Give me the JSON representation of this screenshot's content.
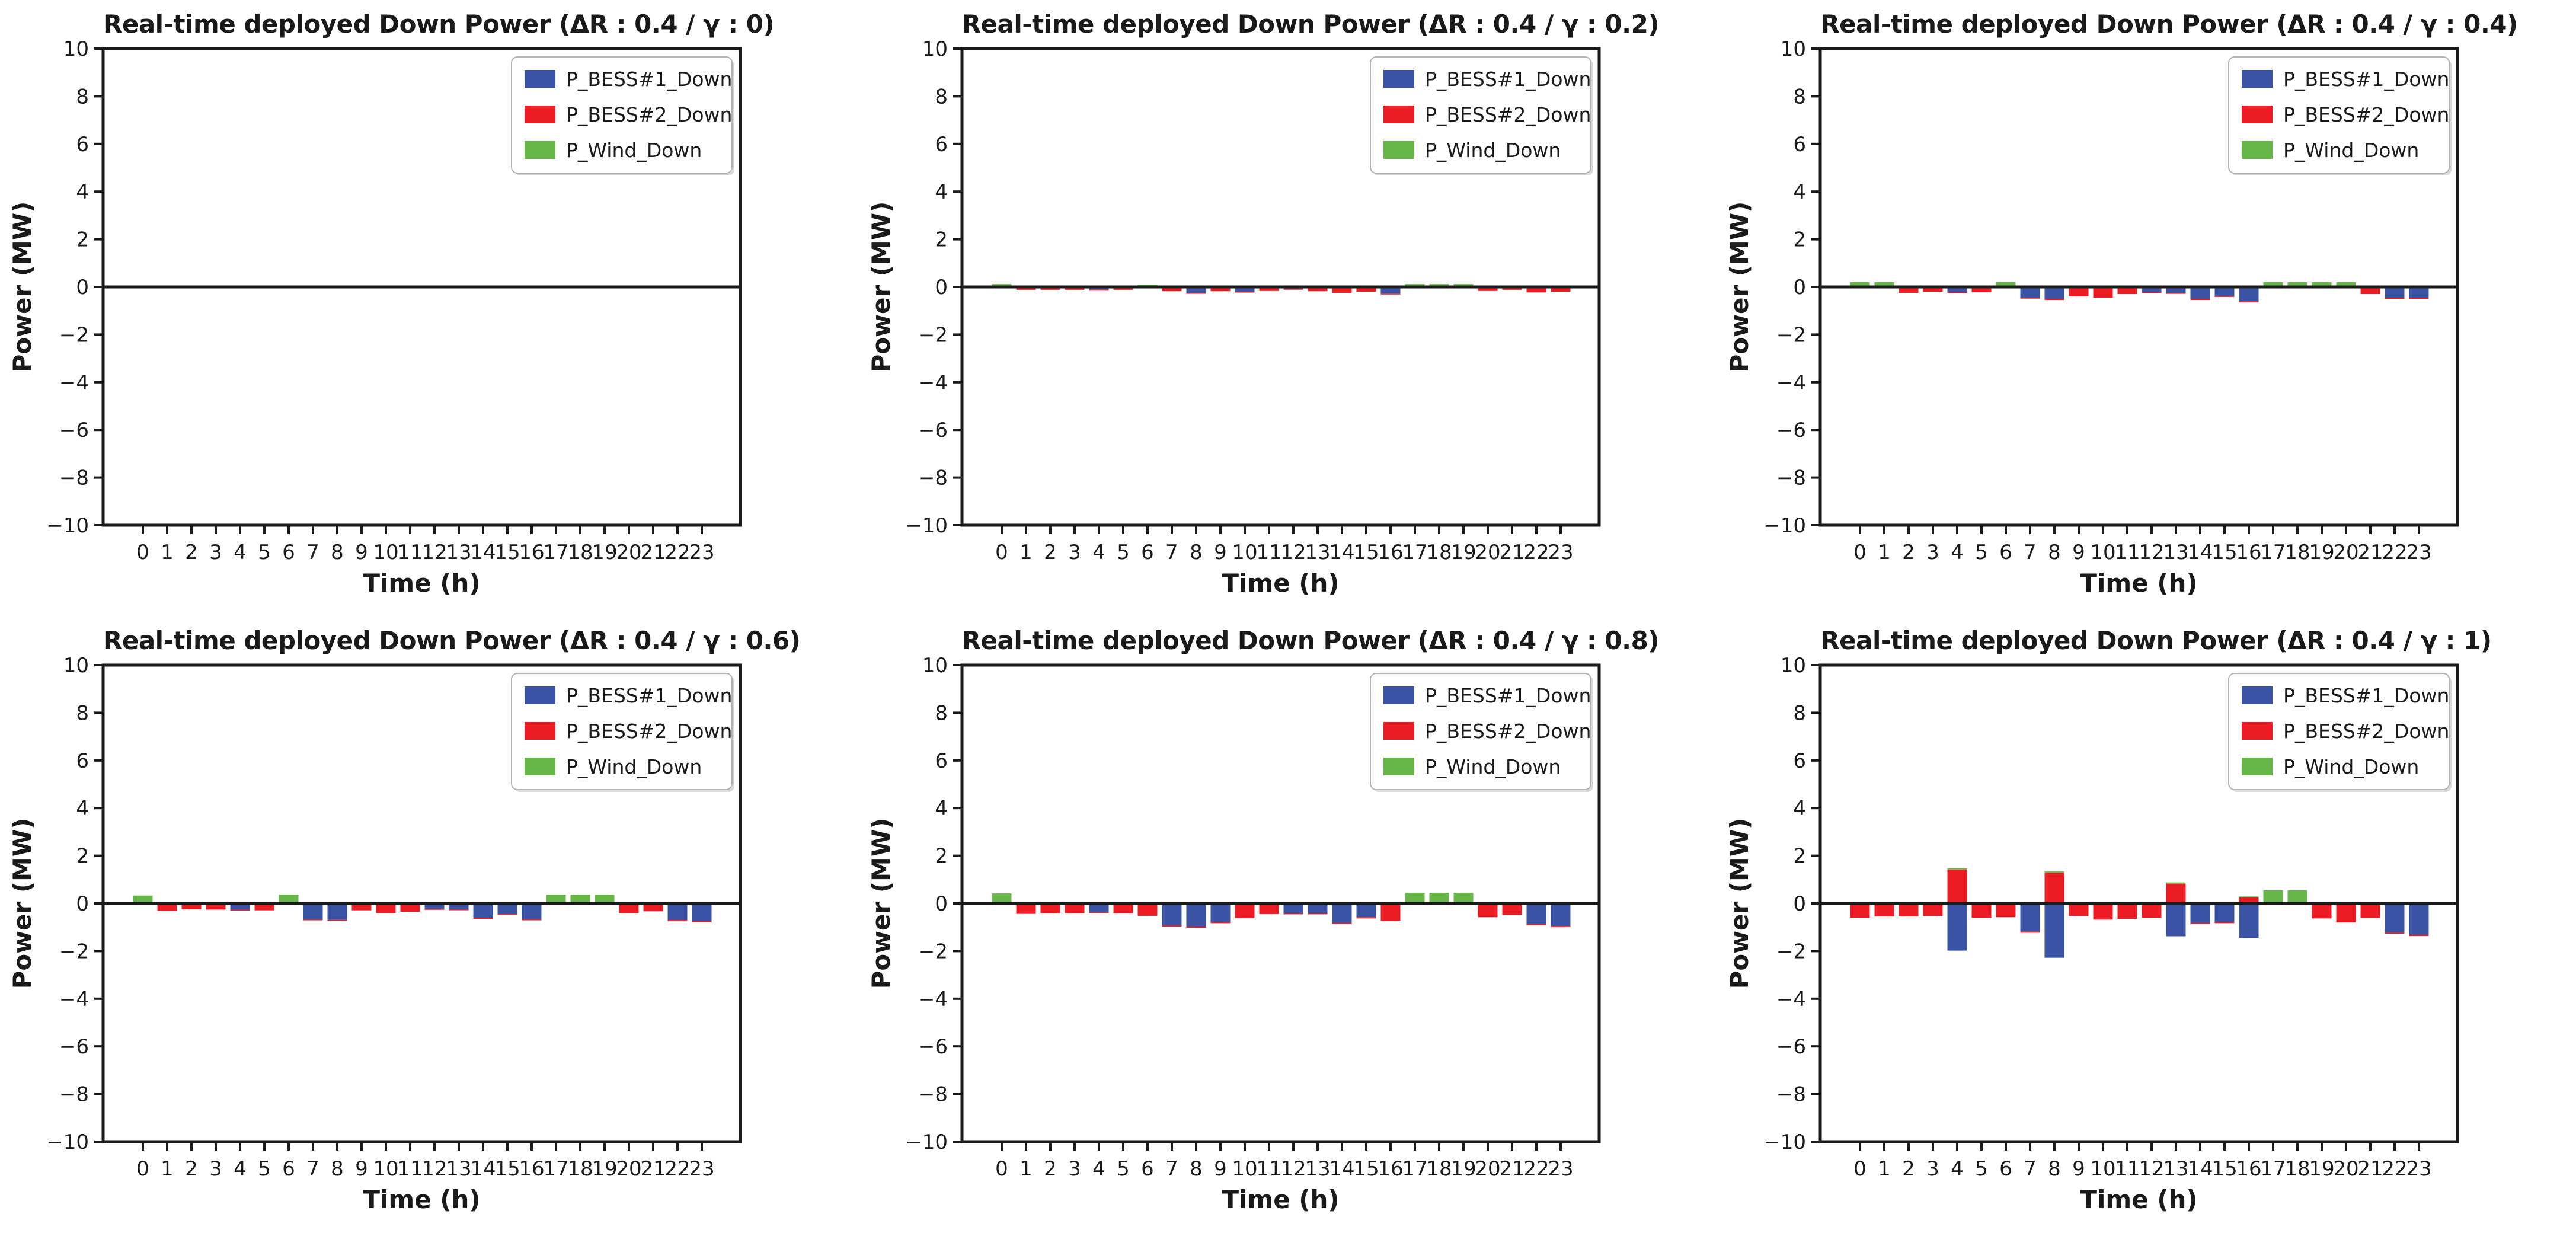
{
  "page": {
    "background": "#ffffff"
  },
  "colors": {
    "bess1": "#3A53A4",
    "bess2": "#EC1C24",
    "wind": "#67B648",
    "axis": "#1a1a1a",
    "legend_border": "#b3b3b3",
    "legend_shadow": "#d9d9d9"
  },
  "legend": {
    "entries": [
      {
        "label": "P_BESS#1_Down",
        "series": "bess1"
      },
      {
        "label": "P_BESS#2_Down",
        "series": "bess2"
      },
      {
        "label": "P_Wind_Down",
        "series": "wind"
      }
    ]
  },
  "axes": {
    "xlabel": "Time (h)",
    "ylabel": "Power (MW)",
    "ylim": [
      -10,
      10
    ],
    "ytick_values": [
      10,
      8,
      6,
      4,
      2,
      0,
      -2,
      -4,
      -6,
      -8,
      -10
    ],
    "ytick_labels": [
      "10",
      "8",
      "6",
      "4",
      "2",
      "0",
      "−2",
      "−4",
      "−6",
      "−8",
      "−10"
    ],
    "xtick_labels": [
      "0",
      "1",
      "2",
      "3",
      "4",
      "5",
      "6",
      "7",
      "8",
      "9",
      "10",
      "11",
      "12",
      "13",
      "14",
      "15",
      "16",
      "17",
      "18",
      "19",
      "20",
      "21",
      "22",
      "23"
    ],
    "grid": false,
    "legend_position": "upper right"
  },
  "chart_data": [
    {
      "type": "bar",
      "stacked": true,
      "title": "Real-time deployed Down Power (ΔR : 0.4 / γ : 0)",
      "delta_R": 0.4,
      "gamma": 0,
      "xlabel": "Time (h)",
      "ylabel": "Power (MW)",
      "ylim": [
        -10,
        10
      ],
      "categories": [
        0,
        1,
        2,
        3,
        4,
        5,
        6,
        7,
        8,
        9,
        10,
        11,
        12,
        13,
        14,
        15,
        16,
        17,
        18,
        19,
        20,
        21,
        22,
        23
      ],
      "series": [
        {
          "name": "P_BESS#1_Down",
          "color_key": "bess1",
          "values": [
            0,
            0,
            0,
            0,
            0,
            0,
            0,
            0,
            0,
            0,
            0,
            0,
            0,
            0,
            0,
            0,
            0,
            0,
            0,
            0,
            0,
            0,
            0,
            0
          ]
        },
        {
          "name": "P_BESS#2_Down",
          "color_key": "bess2",
          "values": [
            0,
            0,
            0,
            0,
            0,
            0,
            0,
            0,
            0,
            0,
            0,
            0,
            0,
            0,
            0,
            0,
            0,
            0,
            0,
            0,
            0,
            0,
            0,
            0
          ]
        },
        {
          "name": "P_Wind_Down",
          "color_key": "wind",
          "values": [
            0,
            0,
            0,
            0,
            0,
            0,
            0,
            0,
            0,
            0,
            0,
            0,
            0,
            0,
            0,
            0,
            0,
            0,
            0,
            0,
            0,
            0,
            0,
            0
          ]
        }
      ]
    },
    {
      "type": "bar",
      "stacked": true,
      "title": "Real-time deployed Down Power (ΔR : 0.4 / γ : 0.2)",
      "delta_R": 0.4,
      "gamma": 0.2,
      "xlabel": "Time (h)",
      "ylabel": "Power (MW)",
      "ylim": [
        -10,
        10
      ],
      "categories": [
        0,
        1,
        2,
        3,
        4,
        5,
        6,
        7,
        8,
        9,
        10,
        11,
        12,
        13,
        14,
        15,
        16,
        17,
        18,
        19,
        20,
        21,
        22,
        23
      ],
      "series": [
        {
          "name": "P_BESS#1_Down",
          "color_key": "bess1",
          "values": [
            0,
            0,
            0,
            0,
            -0.12,
            0,
            0,
            0,
            -0.25,
            0,
            -0.2,
            0,
            -0.08,
            0,
            0,
            0,
            -0.28,
            0,
            0,
            0,
            0,
            0,
            0,
            0
          ]
        },
        {
          "name": "P_BESS#2_Down",
          "color_key": "bess2",
          "values": [
            0,
            -0.12,
            -0.12,
            -0.12,
            -0.03,
            -0.12,
            0,
            -0.18,
            -0.03,
            -0.18,
            -0.03,
            -0.17,
            -0.03,
            -0.18,
            -0.25,
            -0.2,
            -0.03,
            0,
            0,
            0,
            -0.17,
            -0.12,
            -0.23,
            -0.2
          ]
        },
        {
          "name": "P_Wind_Down",
          "color_key": "wind",
          "values": [
            0.12,
            0,
            0,
            0,
            0,
            0,
            0.1,
            0,
            0,
            0,
            0,
            0,
            0,
            0,
            0,
            0,
            0,
            0.12,
            0.12,
            0.12,
            0,
            0,
            0,
            0
          ]
        }
      ]
    },
    {
      "type": "bar",
      "stacked": true,
      "title": "Real-time deployed Down Power (ΔR : 0.4 / γ : 0.4)",
      "delta_R": 0.4,
      "gamma": 0.4,
      "xlabel": "Time (h)",
      "ylabel": "Power (MW)",
      "ylim": [
        -10,
        10
      ],
      "categories": [
        0,
        1,
        2,
        3,
        4,
        5,
        6,
        7,
        8,
        9,
        10,
        11,
        12,
        13,
        14,
        15,
        16,
        17,
        18,
        19,
        20,
        21,
        22,
        23
      ],
      "series": [
        {
          "name": "P_BESS#1_Down",
          "color_key": "bess1",
          "values": [
            0,
            0,
            0,
            0,
            -0.22,
            0,
            0,
            -0.45,
            -0.5,
            0,
            0,
            0,
            -0.22,
            -0.25,
            -0.5,
            -0.38,
            -0.6,
            0,
            0,
            0,
            0,
            0,
            -0.45,
            -0.45
          ]
        },
        {
          "name": "P_BESS#2_Down",
          "color_key": "bess2",
          "values": [
            0,
            0,
            -0.25,
            -0.2,
            -0.04,
            -0.22,
            0,
            -0.04,
            -0.05,
            -0.4,
            -0.45,
            -0.3,
            -0.04,
            -0.04,
            -0.05,
            -0.04,
            -0.05,
            0,
            0,
            0,
            0,
            -0.3,
            -0.05,
            -0.05
          ]
        },
        {
          "name": "P_Wind_Down",
          "color_key": "wind",
          "values": [
            0.2,
            0.2,
            0,
            0,
            0,
            0,
            0.2,
            0,
            0,
            0,
            0,
            0,
            0,
            0,
            0,
            0,
            0,
            0.2,
            0.2,
            0.2,
            0.2,
            0,
            0,
            0
          ]
        }
      ]
    },
    {
      "type": "bar",
      "stacked": true,
      "title": "Real-time deployed Down Power (ΔR : 0.4 / γ : 0.6)",
      "delta_R": 0.4,
      "gamma": 0.6,
      "xlabel": "Time (h)",
      "ylabel": "Power (MW)",
      "ylim": [
        -10,
        10
      ],
      "categories": [
        0,
        1,
        2,
        3,
        4,
        5,
        6,
        7,
        8,
        9,
        10,
        11,
        12,
        13,
        14,
        15,
        16,
        17,
        18,
        19,
        20,
        21,
        22,
        23
      ],
      "series": [
        {
          "name": "P_BESS#1_Down",
          "color_key": "bess1",
          "values": [
            0,
            0,
            0,
            0,
            -0.26,
            0,
            0,
            -0.67,
            -0.69,
            0,
            0,
            0,
            -0.23,
            -0.25,
            -0.6,
            -0.45,
            -0.66,
            0,
            0,
            0,
            0,
            0,
            -0.7,
            -0.74
          ]
        },
        {
          "name": "P_BESS#2_Down",
          "color_key": "bess2",
          "values": [
            0,
            -0.31,
            -0.25,
            -0.26,
            -0.03,
            -0.29,
            0,
            -0.04,
            -0.04,
            -0.29,
            -0.41,
            -0.35,
            -0.03,
            -0.03,
            -0.05,
            -0.04,
            -0.05,
            0,
            0,
            0,
            -0.41,
            -0.33,
            -0.05,
            -0.05
          ]
        },
        {
          "name": "P_Wind_Down",
          "color_key": "wind",
          "values": [
            0.33,
            0,
            0,
            0,
            0,
            0,
            0.37,
            0,
            0,
            0,
            0,
            0,
            0,
            0,
            0,
            0,
            0,
            0.37,
            0.37,
            0.37,
            0,
            0,
            0,
            0
          ]
        }
      ]
    },
    {
      "type": "bar",
      "stacked": true,
      "title": "Real-time deployed Down Power (ΔR : 0.4 / γ : 0.8)",
      "delta_R": 0.4,
      "gamma": 0.8,
      "xlabel": "Time (h)",
      "ylabel": "Power (MW)",
      "ylim": [
        -10,
        10
      ],
      "categories": [
        0,
        1,
        2,
        3,
        4,
        5,
        6,
        7,
        8,
        9,
        10,
        11,
        12,
        13,
        14,
        15,
        16,
        17,
        18,
        19,
        20,
        21,
        22,
        23
      ],
      "series": [
        {
          "name": "P_BESS#1_Down",
          "color_key": "bess1",
          "values": [
            0,
            0,
            0,
            0,
            -0.37,
            0,
            0,
            -0.92,
            -0.97,
            -0.78,
            0,
            0,
            -0.42,
            -0.42,
            -0.82,
            -0.58,
            0,
            0,
            0,
            0,
            0,
            0,
            -0.86,
            -0.95
          ]
        },
        {
          "name": "P_BESS#2_Down",
          "color_key": "bess2",
          "values": [
            0,
            -0.44,
            -0.42,
            -0.42,
            -0.04,
            -0.42,
            -0.52,
            -0.05,
            -0.05,
            -0.05,
            -0.62,
            -0.45,
            -0.04,
            -0.04,
            -0.05,
            -0.05,
            -0.74,
            0,
            0,
            0,
            -0.58,
            -0.49,
            -0.05,
            -0.05
          ]
        },
        {
          "name": "P_Wind_Down",
          "color_key": "wind",
          "values": [
            0.42,
            0,
            0,
            0,
            0,
            0,
            0,
            0,
            0,
            0,
            0,
            0,
            0,
            0,
            0,
            0,
            0,
            0.45,
            0.45,
            0.45,
            0,
            0,
            0,
            0
          ]
        }
      ]
    },
    {
      "type": "bar",
      "stacked": true,
      "title": "Real-time deployed Down Power (ΔR : 0.4 / γ : 1)",
      "delta_R": 0.4,
      "gamma": 1,
      "xlabel": "Time (h)",
      "ylabel": "Power (MW)",
      "ylim": [
        -10,
        10
      ],
      "categories": [
        0,
        1,
        2,
        3,
        4,
        5,
        6,
        7,
        8,
        9,
        10,
        11,
        12,
        13,
        14,
        15,
        16,
        17,
        18,
        19,
        20,
        21,
        22,
        23
      ],
      "series": [
        {
          "name": "P_BESS#1_Down",
          "color_key": "bess1",
          "values": [
            0,
            0,
            0,
            0,
            -1.98,
            0,
            0,
            -1.18,
            -2.28,
            0,
            0,
            0,
            0,
            -1.38,
            -0.82,
            -0.78,
            -1.45,
            0,
            0,
            0,
            0,
            0,
            -1.22,
            -1.32
          ]
        },
        {
          "name": "P_BESS#2_Down",
          "color_key": "bess2",
          "values": [
            -0.6,
            -0.55,
            -0.55,
            -0.53,
            1.42,
            -0.6,
            -0.58,
            -0.05,
            1.28,
            -0.53,
            -0.68,
            -0.65,
            -0.6,
            0.83,
            -0.05,
            -0.05,
            0.25,
            0,
            0,
            -0.63,
            -0.8,
            -0.61,
            -0.05,
            -0.05
          ]
        },
        {
          "name": "P_Wind_Down",
          "color_key": "wind",
          "values": [
            0,
            0,
            0,
            0,
            0.06,
            0,
            0,
            0,
            0.06,
            0,
            0,
            0,
            0,
            0.05,
            0,
            0,
            0.04,
            0.55,
            0.55,
            0,
            0,
            0,
            0,
            0
          ]
        }
      ]
    }
  ]
}
